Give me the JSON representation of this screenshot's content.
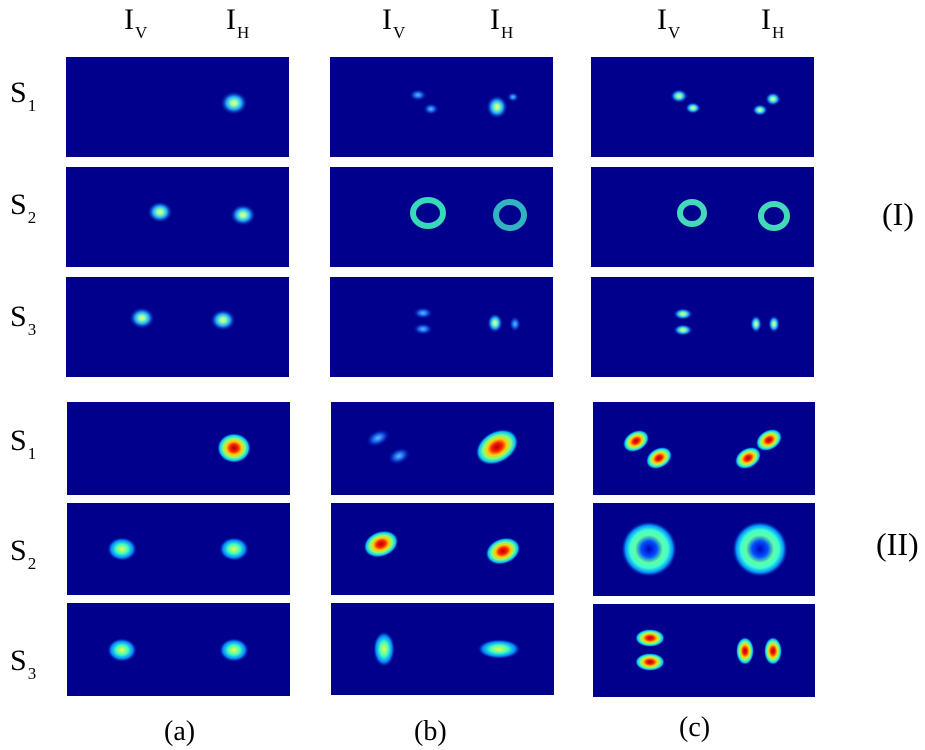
{
  "column_header": {
    "v_main": "I",
    "v_sub": "V",
    "h_main": "I",
    "h_sub": "H"
  },
  "rows": [
    {
      "main": "S",
      "sub": "1"
    },
    {
      "main": "S",
      "sub": "2"
    },
    {
      "main": "S",
      "sub": "3"
    },
    {
      "main": "S",
      "sub": "1"
    },
    {
      "main": "S",
      "sub": "2"
    },
    {
      "main": "S",
      "sub": "3"
    }
  ],
  "group_labels": [
    "(I)",
    "(II)"
  ],
  "column_labels": [
    "(a)",
    "(b)",
    "(c)"
  ],
  "colors": {
    "background": "#00008c",
    "beam_edge": "#00ffff",
    "beam_core": "#ff0000"
  }
}
